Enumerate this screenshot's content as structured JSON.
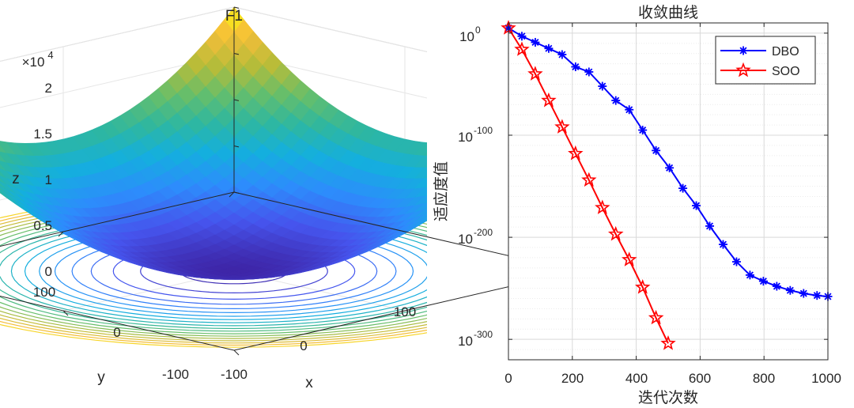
{
  "colors": {
    "dbo": "#0000ff",
    "soo": "#ff0000",
    "grid": "#dddddd",
    "axis": "#262626",
    "surface_low": "#3e26a8",
    "surface_mid": "#2eb7a0",
    "surface_high": "#f9fb0e"
  },
  "chart_data": [
    {
      "type": "surface3d",
      "title": "F1",
      "function": "z = x^2 + y^2",
      "xlabel": "x",
      "ylabel": "y",
      "zlabel": "z",
      "x_range": [
        -100,
        100
      ],
      "y_range": [
        -100,
        100
      ],
      "z_range": [
        0,
        20000
      ],
      "x_tick_labels": [
        "-100",
        "0",
        "100"
      ],
      "y_tick_labels": [
        "-100",
        "0",
        "100"
      ],
      "z_tick_labels": [
        "0",
        "0.5",
        "1",
        "1.5",
        "2"
      ],
      "z_exponent_base": "×10",
      "z_exponent_power": "4",
      "contour_levels": [
        500,
        1500,
        2500,
        3500,
        4500,
        5500,
        6500,
        7500,
        8500,
        9500,
        10500,
        11500,
        12500,
        13500,
        14500,
        15500,
        16500,
        17500,
        18500
      ],
      "colormap": "parula"
    },
    {
      "type": "line",
      "title": "收敛曲线",
      "xlabel": "迭代次数",
      "ylabel": "适应度值",
      "yscale": "log",
      "xlim": [
        0,
        1000
      ],
      "ylim_exp": [
        -320,
        10
      ],
      "x_ticks": [
        0,
        200,
        400,
        600,
        800,
        1000
      ],
      "x_tick_labels": [
        "0",
        "200",
        "400",
        "600",
        "800",
        "1000"
      ],
      "y_tick_exps": [
        0,
        -100,
        -200,
        -300
      ],
      "y_tick_base": "10",
      "y_tick_powers": [
        "0",
        "-100",
        "-200",
        "-300"
      ],
      "legend_position": "top-right",
      "grid": true,
      "series": [
        {
          "name": "DBO",
          "marker": "asterisk",
          "x": [
            0,
            42,
            84,
            126,
            168,
            210,
            252,
            294,
            336,
            378,
            420,
            462,
            504,
            546,
            588,
            630,
            672,
            714,
            756,
            798,
            840,
            882,
            924,
            966,
            1000
          ],
          "log10_y": [
            5,
            -3,
            -9,
            -15,
            -21,
            -33,
            -38,
            -52,
            -66,
            -75,
            -95,
            -115,
            -132,
            -152,
            -169,
            -189,
            -207,
            -224,
            -237,
            -243,
            -248,
            -252,
            -255,
            -257,
            -258
          ]
        },
        {
          "name": "SOO",
          "marker": "pentagram",
          "x": [
            0,
            42,
            84,
            126,
            168,
            210,
            252,
            294,
            336,
            378,
            420,
            462,
            500
          ],
          "log10_y": [
            5,
            -16,
            -40,
            -66,
            -92,
            -118,
            -144,
            -171,
            -197,
            -222,
            -249,
            -279,
            -304
          ]
        }
      ]
    }
  ]
}
